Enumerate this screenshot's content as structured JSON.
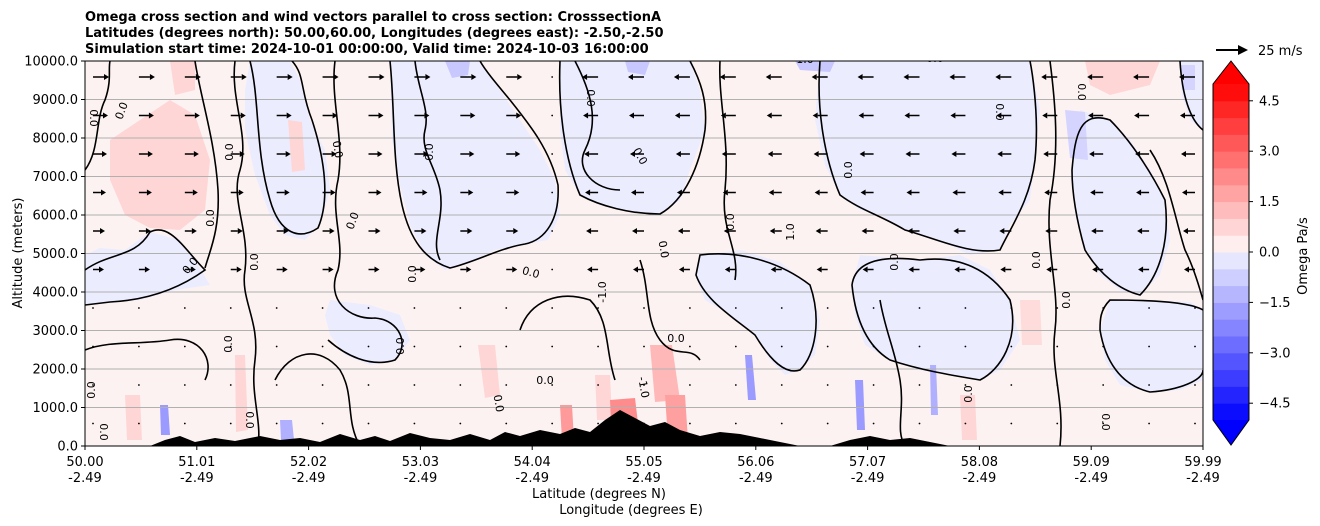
{
  "chart_data": {
    "type": "contourf",
    "title": [
      "Omega cross section and wind vectors parallel to cross section: CrosssectionA",
      "Latitudes (degrees north): 50.00,60.00, Longitudes (degrees east): -2.50,-2.50",
      "Simulation start time: 2024-10-01 00:00:00, Valid time: 2024-10-03 16:00:00"
    ],
    "xlabel_lat": "Latitude (degrees N)",
    "xlabel_lon": "Longitude (degrees E)",
    "ylabel": "Altitude (meters)",
    "x_ticks": [
      {
        "lat": "50.00",
        "lon": "-2.49"
      },
      {
        "lat": "51.01",
        "lon": "-2.49"
      },
      {
        "lat": "52.02",
        "lon": "-2.49"
      },
      {
        "lat": "53.03",
        "lon": "-2.49"
      },
      {
        "lat": "54.04",
        "lon": "-2.49"
      },
      {
        "lat": "55.05",
        "lon": "-2.49"
      },
      {
        "lat": "56.06",
        "lon": "-2.49"
      },
      {
        "lat": "57.07",
        "lon": "-2.49"
      },
      {
        "lat": "58.08",
        "lon": "-2.49"
      },
      {
        "lat": "59.09",
        "lon": "-2.49"
      },
      {
        "lat": "59.99",
        "lon": "-2.49"
      }
    ],
    "y_ticks": [
      "0.0",
      "1000.0",
      "2000.0",
      "3000.0",
      "4000.0",
      "5000.0",
      "6000.0",
      "7000.0",
      "8000.0",
      "9000.0",
      "10000.0"
    ],
    "ylim": [
      0,
      10000
    ],
    "xlim": [
      50.0,
      59.99
    ],
    "grid": "horizontal",
    "colorbar": {
      "label": "Omega Pa/s",
      "ticks": [
        "4.5",
        "3.0",
        "1.5",
        "0.0",
        "−1.5",
        "−3.0",
        "−4.5"
      ],
      "range": [
        -5.0,
        5.0
      ],
      "extend": "both"
    },
    "quiver_key": "25 m/s",
    "contour_level_label": "0.0",
    "contour_labels": [
      "0.0",
      "0.0",
      "0.0",
      "0.0",
      "0.0",
      "0.0",
      "0.0",
      "0.0",
      "0.0",
      "0.0",
      "0.0",
      "0.0",
      "-1.0",
      "0.0",
      "0.0",
      "0.0",
      "0.0",
      "1.0",
      "1.0",
      "0.0"
    ],
    "colors": {
      "positive_strong": "#ff0000",
      "positive_weak": "#ffe9e9",
      "negative_strong": "#0000ff",
      "negative_weak": "#ececff",
      "terrain": "#000000",
      "grid": "#b0b0b0"
    }
  }
}
